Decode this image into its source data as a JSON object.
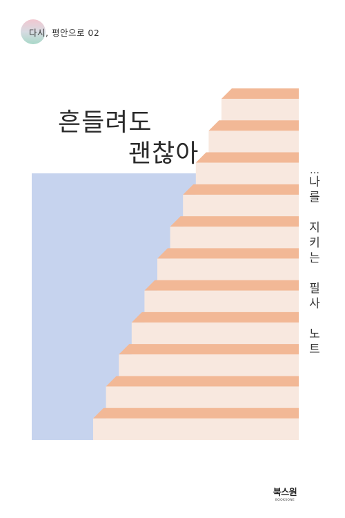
{
  "series": {
    "label": "다시, 평안으로 02"
  },
  "title": {
    "line1": "흔들려도",
    "line2": "괜찮아"
  },
  "subtitle": {
    "lead": "…",
    "chars": [
      "나",
      "를",
      "",
      "지",
      "키",
      "는",
      "",
      "필",
      "사",
      "",
      "노",
      "트"
    ]
  },
  "publisher": {
    "name": "북스원",
    "sub": "BOOKSONE"
  },
  "colors": {
    "step_face": "#f8e8df",
    "step_tread": "#f2b896",
    "wall": "#c6d3ee",
    "background": "#ffffff"
  },
  "illustration": {
    "type": "staircase",
    "step_count": 11
  }
}
